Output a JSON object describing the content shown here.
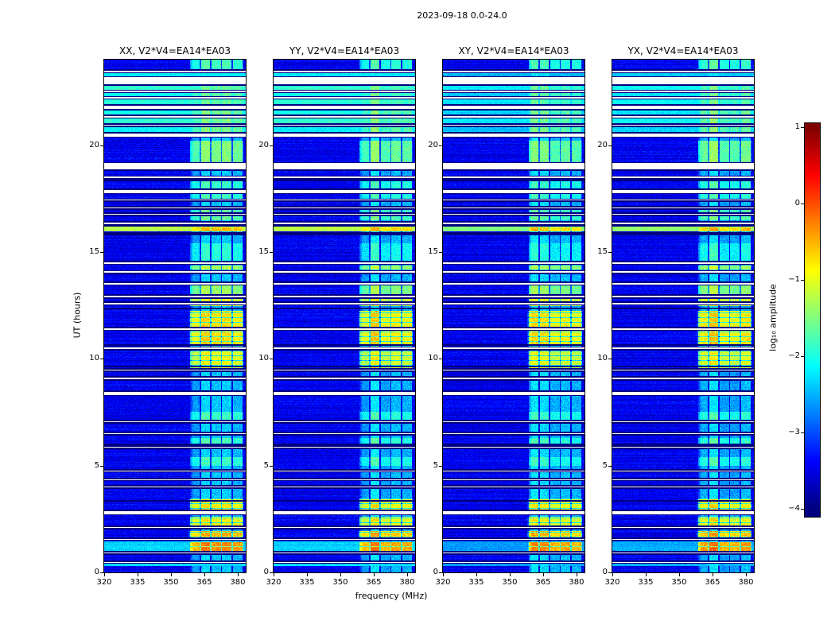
{
  "chart_data": {
    "type": "heatmap",
    "title": "2023-09-18 0.0-24.0",
    "xlabel": "frequency (MHz)",
    "ylabel": "UT (hours)",
    "x_range": [
      320,
      383.6
    ],
    "y_range": [
      0,
      24
    ],
    "x_ticks": [
      320,
      335,
      350,
      365,
      380
    ],
    "y_ticks": [
      0,
      5,
      10,
      15,
      20
    ],
    "value_range": [
      -4,
      1
    ],
    "colormap": "jet",
    "colorbar": {
      "label": "log₁₀ amplitude",
      "ticks": [
        1,
        0,
        -1,
        -2,
        -3,
        -4
      ]
    },
    "colors": {
      "figure_background": "#ffffff",
      "flagged_rows": "#ffffff",
      "frame": "#000000",
      "text": "#000000"
    },
    "panels": [
      {
        "label": "XX, V2*V4=EA14*EA03",
        "seed": 101,
        "bb_gain": 1.0,
        "rfi_gain": 1.0
      },
      {
        "label": "YY, V2*V4=EA14*EA03",
        "seed": 202,
        "bb_gain": 1.0,
        "rfi_gain": 0.95
      },
      {
        "label": "XY, V2*V4=EA14*EA03",
        "seed": 303,
        "bb_gain": 0.75,
        "rfi_gain": 0.9
      },
      {
        "label": "YX, V2*V4=EA14*EA03",
        "seed": 404,
        "bb_gain": 0.85,
        "rfi_gain": 1.0
      }
    ],
    "background_level": -3.45,
    "rfi_band": {
      "freq_range": [
        358,
        382.5
      ],
      "baseline_level": -2.45,
      "channel_width_mhz": 4.8,
      "gap_fraction": 0.13
    },
    "flagged_rows_ut": [
      [
        0.45,
        0.5
      ],
      [
        0.89,
        0.94
      ],
      [
        1.53,
        1.58
      ],
      [
        2.08,
        2.13
      ],
      [
        2.72,
        2.88
      ],
      [
        3.98,
        4.03
      ],
      [
        4.32,
        4.37
      ],
      [
        4.73,
        4.78
      ],
      [
        5.84,
        5.89
      ],
      [
        6.47,
        6.52
      ],
      [
        7.03,
        7.08
      ],
      [
        8.3,
        8.46
      ],
      [
        9.04,
        9.12
      ],
      [
        9.45,
        9.5
      ],
      [
        10.45,
        10.53
      ],
      [
        11.35,
        11.43
      ],
      [
        12.54,
        12.62
      ],
      [
        12.87,
        12.95
      ],
      [
        13.47,
        13.55
      ],
      [
        14.02,
        14.1
      ],
      [
        14.45,
        14.53
      ],
      [
        16.3,
        16.38
      ],
      [
        16.74,
        16.79
      ],
      [
        17.04,
        17.09
      ],
      [
        17.4,
        17.45
      ],
      [
        17.75,
        17.9
      ],
      [
        18.45,
        18.53
      ],
      [
        18.86,
        19.16
      ],
      [
        20.39,
        20.55
      ],
      [
        20.9,
        20.96
      ],
      [
        21.3,
        21.36
      ],
      [
        21.69,
        21.85
      ],
      [
        22.18,
        22.24
      ],
      [
        22.48,
        22.54
      ],
      [
        22.84,
        23.18
      ],
      [
        23.42,
        23.48
      ]
    ],
    "dark_rows_ut": [
      [
        3.3,
        3.37
      ],
      [
        5.95,
        6.02
      ],
      [
        9.6,
        9.66
      ],
      [
        10.6,
        10.68
      ],
      [
        12.3,
        12.4
      ],
      [
        15.78,
        15.93
      ],
      [
        16.18,
        16.29
      ],
      [
        18.3,
        18.4
      ]
    ],
    "bright_rows": [
      {
        "ut": [
          0.3,
          0.52
        ],
        "level": -2.3
      },
      {
        "ut": [
          1.0,
          1.45
        ],
        "level": -2.35
      },
      {
        "ut": [
          15.95,
          16.17
        ],
        "level": -1.2
      },
      {
        "ut": [
          20.56,
          20.89
        ],
        "level": -2.15
      },
      {
        "ut": [
          20.96,
          21.29
        ],
        "level": -1.9
      },
      {
        "ut": [
          21.36,
          21.68
        ],
        "level": -2.05
      },
      {
        "ut": [
          21.86,
          22.17
        ],
        "level": -1.95
      },
      {
        "ut": [
          22.24,
          22.47
        ],
        "level": -2.1
      },
      {
        "ut": [
          22.54,
          22.83
        ],
        "level": -1.9
      },
      {
        "ut": [
          23.19,
          23.41
        ],
        "level": -2.2
      }
    ],
    "rfi_blocks": [
      {
        "ut": [
          0.92,
          1.42
        ],
        "level": -0.35
      },
      {
        "ut": [
          1.5,
          1.95
        ],
        "level": -0.55
      },
      {
        "ut": [
          2.15,
          2.6
        ],
        "level": -0.9
      },
      {
        "ut": [
          2.95,
          3.45
        ],
        "level": -0.85
      },
      {
        "ut": [
          5.0,
          5.4
        ],
        "level": -1.9
      },
      {
        "ut": [
          5.9,
          6.3
        ],
        "level": -1.85
      },
      {
        "ut": [
          7.1,
          7.5
        ],
        "level": -1.9
      },
      {
        "ut": [
          9.5,
          10.4
        ],
        "level": -1.0
      },
      {
        "ut": [
          10.55,
          11.3
        ],
        "level": -0.75
      },
      {
        "ut": [
          11.45,
          12.25
        ],
        "level": -0.8
      },
      {
        "ut": [
          12.45,
          12.8
        ],
        "level": -1.0
      },
      {
        "ut": [
          13.0,
          13.45
        ],
        "level": -1.4
      },
      {
        "ut": [
          13.9,
          14.35
        ],
        "level": -1.3
      },
      {
        "ut": [
          14.55,
          15.4
        ],
        "level": -2.0
      },
      {
        "ut": [
          15.95,
          16.17
        ],
        "level": -0.6
      },
      {
        "ut": [
          16.5,
          17.0
        ],
        "level": -1.7
      },
      {
        "ut": [
          17.4,
          18.4
        ],
        "level": -1.9
      },
      {
        "ut": [
          19.2,
          20.2
        ],
        "level": -1.55
      },
      {
        "ut": [
          20.55,
          21.65
        ],
        "level": -1.6
      },
      {
        "ut": [
          21.9,
          23.2
        ],
        "level": -1.7
      },
      {
        "ut": [
          23.45,
          24.0
        ],
        "level": -1.85
      }
    ]
  }
}
